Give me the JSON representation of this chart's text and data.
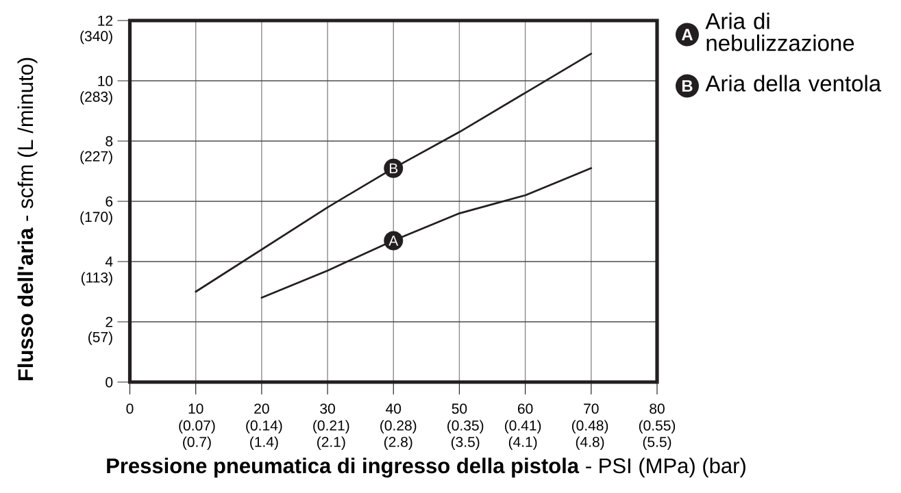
{
  "chart_data": {
    "type": "line",
    "xlabel": "**Pressione pneumatica di ingresso della pistola** - PSI (MPa) (bar)",
    "ylabel": "**Flusso dell'aria** - scfm (L /minuto)",
    "series": [
      {
        "name": "Aria di nebulizzazione",
        "color": "#231f20",
        "axis": "y2",
        "x": [
          20,
          30,
          40,
          50,
          55,
          60,
          70
        ],
        "values": [
          2.8,
          3.7,
          4.7,
          5.6,
          5.9,
          6.2,
          7.1
        ]
      },
      {
        "name": "Aria della ventola",
        "color": "#231f20",
        "axis": "y2",
        "x": [
          10,
          20,
          30,
          40,
          50,
          60,
          70
        ],
        "values": [
          3.0,
          4.4,
          5.8,
          7.1,
          8.3,
          9.6,
          10.9
        ]
      }
    ],
    "xlim": [
      0,
      80
    ],
    "ylim": [
      0,
      340
    ],
    "xticks": [
      0,
      10,
      20,
      30,
      40,
      50,
      60,
      70,
      80
    ],
    "yticks": [
      {
        "value": 57,
        "label": "(57)"
      },
      {
        "value": 113,
        "label": "(113)"
      },
      {
        "value": 170,
        "label": "(170)"
      },
      {
        "value": 227,
        "label": "(227)"
      },
      {
        "value": 283,
        "label": "(283)"
      },
      {
        "value": 340,
        "label": "(340)"
      }
    ],
    "x2lim": [
      0,
      0.55
    ],
    "x2ticks": [
      {
        "value": 0.07,
        "label": "(0.07)"
      },
      {
        "value": 0.14,
        "label": "(0.14)"
      },
      {
        "value": 0.21,
        "label": "(0.21)"
      },
      {
        "value": 0.28,
        "label": "(0.28)"
      },
      {
        "value": 0.35,
        "label": "(0.35)"
      },
      {
        "value": 0.41,
        "label": "(0.41)"
      },
      {
        "value": 0.48,
        "label": "(0.48)"
      },
      {
        "value": 0.55,
        "label": "(0.55)"
      }
    ],
    "y2lim": [
      0,
      12
    ],
    "y2ticks": [
      0,
      2,
      4,
      6,
      8,
      10,
      12
    ],
    "grid": true,
    "legend": "top right",
    "line_style": "solid",
    "annotations": [
      {
        "text": "A",
        "x": 40,
        "y": 133
      },
      {
        "text": "B",
        "x": 40,
        "y": 201
      },
      "(0.7)",
      "(1.4)",
      "(2.1)",
      "(2.8)",
      "(3.5)",
      "(4.1)",
      "(4.8)",
      "(5.5)"
    ]
  }
}
